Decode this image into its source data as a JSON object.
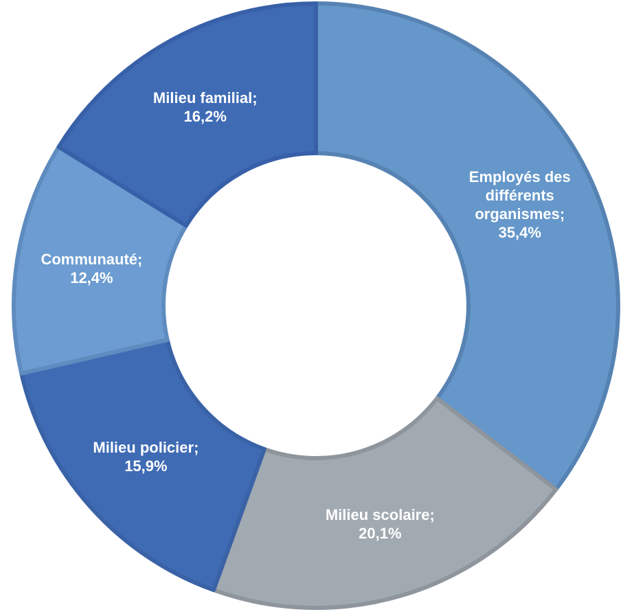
{
  "chart_data": {
    "type": "donut",
    "categories": [
      "Employés des différents organismes",
      "Milieu scolaire",
      "Milieu policier",
      "Communauté",
      "Milieu familial"
    ],
    "values": [
      35.4,
      20.1,
      15.9,
      12.4,
      16.2
    ],
    "value_labels": [
      "35,4%",
      "20,1%",
      "15,9%",
      "12,4%",
      "16,2%"
    ],
    "label_separator": ";",
    "colors": [
      "#6597ca",
      "#a1a9b1",
      "#3f6bb5",
      "#6c9cd1",
      "#3f6bb5"
    ],
    "stroke_colors": [
      "#5683b3",
      "#8e959c",
      "#3a62a6",
      "#5f8cbf",
      "#3760a8"
    ]
  }
}
